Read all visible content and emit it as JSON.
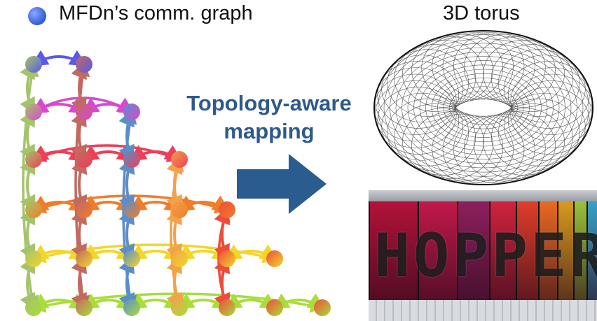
{
  "legend": {
    "node_icon": "blue-node-dot",
    "graph_label": "MFDn’s comm. graph"
  },
  "torus": {
    "label": "3D torus"
  },
  "mapping": {
    "line1": "Topology-aware",
    "line2": "mapping",
    "arrow_color": "#2b5c8f"
  },
  "photo": {
    "word": "HOPPER"
  },
  "colors": {
    "rows": [
      "#5b59e6",
      "#d948cf",
      "#ef3e57",
      "#f07d2a",
      "#f2d62a",
      "#a9dd3a"
    ],
    "cols": [
      "#a4c46a",
      "#c26a5f",
      "#5b8ec9",
      "#f2a24a",
      "#ef4b3c"
    ],
    "text_blue": "#2d5a8c"
  }
}
